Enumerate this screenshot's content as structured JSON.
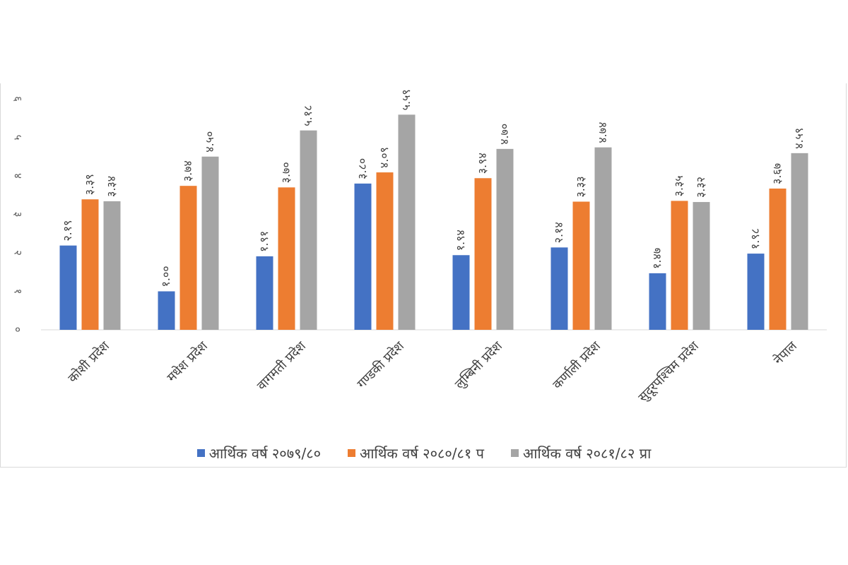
{
  "chart_data": {
    "type": "bar",
    "title": "",
    "xlabel": "",
    "ylabel": "",
    "ylim": [
      0,
      6
    ],
    "y_ticks": [
      "०",
      "१",
      "२",
      "३",
      "४",
      "५",
      "६"
    ],
    "grid": false,
    "legend_position": "bottom",
    "categories": [
      "कोशी प्रदेश",
      "मधेश प्रदेश",
      "वागमती प्रदेश",
      "गण्डकी प्रदेश",
      "लुम्बिनी प्रदेश",
      "कर्णाली प्रदेश",
      "सुदूरपश्चिम प्रदेश",
      "नेपाल"
    ],
    "series": [
      {
        "name": "आर्थिक वर्ष २०७९/८०",
        "color": "#4472c4",
        "values": [
          2.19,
          1.0,
          1.91,
          3.8,
          1.94,
          2.14,
          1.47,
          1.98
        ],
        "labels": [
          "२.१९",
          "१.००",
          "१.९१",
          "३.८०",
          "१.९४",
          "२.१४",
          "१.४७",
          "१.९८"
        ]
      },
      {
        "name": "आर्थिक वर्ष २०८०/८१ प",
        "color": "#ed7d31",
        "values": [
          3.39,
          3.74,
          3.7,
          4.09,
          3.94,
          3.33,
          3.35,
          3.67
        ],
        "labels": [
          "३.३९",
          "३.७४",
          "३.७०",
          "४.०९",
          "३.९४",
          "३.३३",
          "३.३५",
          "३.६७"
        ]
      },
      {
        "name": "आर्थिक वर्ष २०८१/८२ प्रा",
        "color": "#a5a5a5",
        "values": [
          3.34,
          4.5,
          5.18,
          5.59,
          4.7,
          4.74,
          3.32,
          4.59
        ],
        "labels": [
          "३.३४",
          "४.५०",
          "५.१८",
          "५.५९",
          "४.७०",
          "४.७४",
          "३.३२",
          "४.५९"
        ]
      }
    ]
  }
}
